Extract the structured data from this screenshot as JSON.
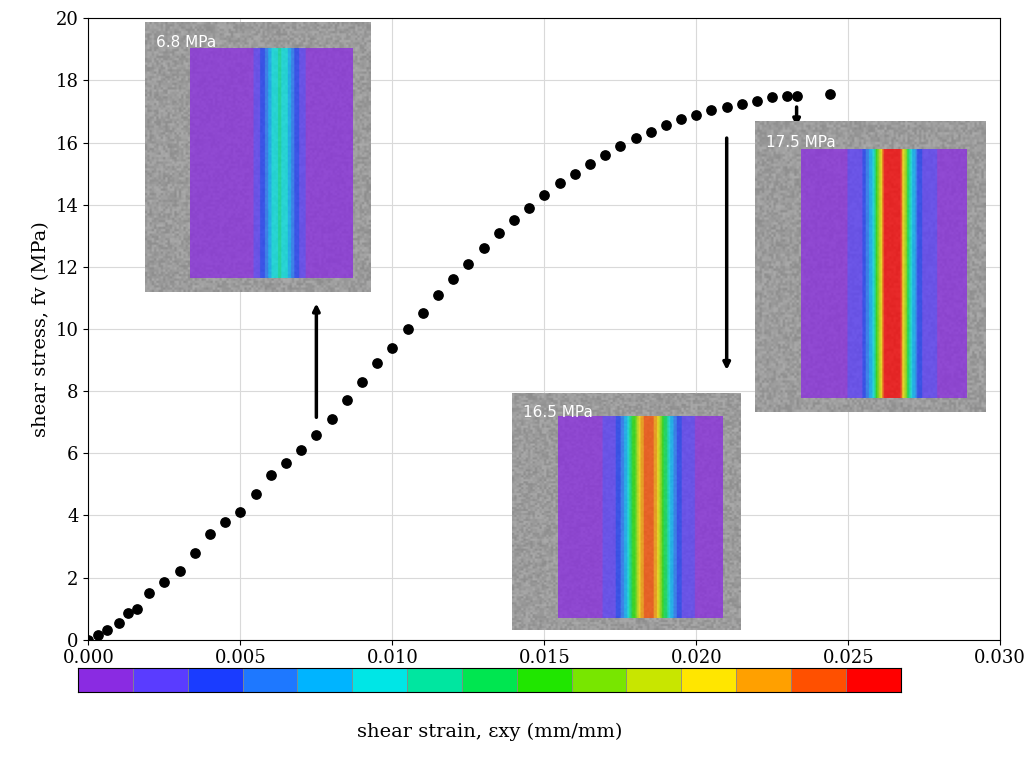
{
  "chart_data": {
    "type": "scatter",
    "x_label": null,
    "y_label": "shear stress, fv (MPa)",
    "colorbar_label": "shear strain, εxy (mm/mm)",
    "x": [
      0,
      0.0003,
      0.0006,
      0.001,
      0.0013,
      0.0016,
      0.002,
      0.0025,
      0.003,
      0.0035,
      0.004,
      0.0045,
      0.005,
      0.0055,
      0.006,
      0.0065,
      0.007,
      0.0075,
      0.008,
      0.0085,
      0.009,
      0.0095,
      0.01,
      0.0105,
      0.011,
      0.0115,
      0.012,
      0.0125,
      0.013,
      0.0135,
      0.014,
      0.0145,
      0.015,
      0.0155,
      0.016,
      0.0165,
      0.017,
      0.0175,
      0.018,
      0.0185,
      0.019,
      0.0195,
      0.02,
      0.0205,
      0.021,
      0.0215,
      0.022,
      0.0225,
      0.023,
      0.0233,
      0.0244
    ],
    "values": [
      0,
      0.15,
      0.3,
      0.55,
      0.85,
      1.0,
      1.5,
      1.85,
      2.2,
      2.8,
      3.4,
      3.8,
      4.1,
      4.7,
      5.3,
      5.7,
      6.1,
      6.6,
      7.1,
      7.7,
      8.3,
      8.9,
      9.4,
      10.0,
      10.5,
      11.1,
      11.6,
      12.1,
      12.6,
      13.1,
      13.5,
      13.9,
      14.3,
      14.7,
      15.0,
      15.3,
      15.6,
      15.9,
      16.15,
      16.35,
      16.55,
      16.75,
      16.9,
      17.05,
      17.15,
      17.25,
      17.35,
      17.45,
      17.5,
      17.5,
      17.55
    ],
    "color": "#000000",
    "marker": "circle",
    "xlim": [
      0,
      0.03
    ],
    "xticks": [
      {
        "value": 0,
        "label": "0.000"
      },
      {
        "value": 0.005,
        "label": "0.005"
      },
      {
        "value": 0.01,
        "label": "0.010"
      },
      {
        "value": 0.015,
        "label": "0.015"
      },
      {
        "value": 0.02,
        "label": "0.020"
      },
      {
        "value": 0.025,
        "label": "0.025"
      },
      {
        "value": 0.03,
        "label": "0.030"
      }
    ],
    "ylim": [
      0,
      20
    ],
    "yticks": [
      0,
      2,
      4,
      6,
      8,
      10,
      12,
      14,
      16,
      18,
      20
    ],
    "grid": true,
    "annotations": [
      {
        "text": "6.8 MPa",
        "x": 0.0075,
        "y": 6.8
      },
      {
        "text": "16.5 MPa",
        "x": 0.021,
        "y": 16.5
      },
      {
        "text": "17.5 MPa",
        "x": 0.0233,
        "y": 17.5
      }
    ]
  }
}
